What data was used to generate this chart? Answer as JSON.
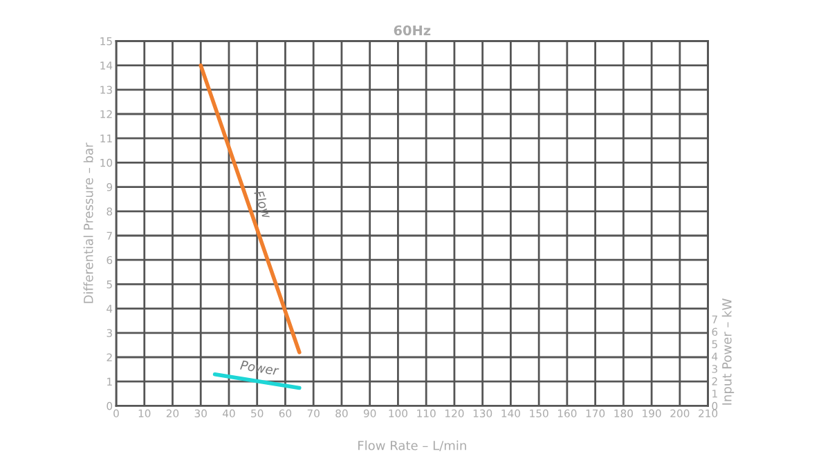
{
  "chart_data": {
    "type": "line",
    "title": "60Hz",
    "xlabel": "Flow Rate – L/min",
    "ylabel": "Differential Pressure – bar",
    "y2label": "Input Power – kW",
    "xlim": [
      0,
      210
    ],
    "xticks": [
      0,
      10,
      20,
      30,
      40,
      50,
      60,
      70,
      80,
      90,
      100,
      110,
      120,
      130,
      140,
      150,
      160,
      170,
      180,
      190,
      200,
      210
    ],
    "ylim": [
      0,
      15
    ],
    "yticks": [
      0,
      1,
      2,
      3,
      4,
      5,
      6,
      7,
      8,
      9,
      10,
      11,
      12,
      13,
      14,
      15
    ],
    "y2lim": [
      0,
      29.5
    ],
    "y2ticks": [
      0,
      1,
      2,
      3,
      4,
      5,
      6,
      7
    ],
    "grid": true,
    "series": [
      {
        "name": "Flow",
        "color": "#f07f2e",
        "x": [
          30,
          65
        ],
        "values": [
          14.0,
          2.2
        ]
      },
      {
        "name": "Power",
        "color": "#1ed6d6",
        "axis": "y2",
        "x": [
          35,
          65
        ],
        "values": [
          2.55,
          1.45
        ]
      }
    ]
  }
}
